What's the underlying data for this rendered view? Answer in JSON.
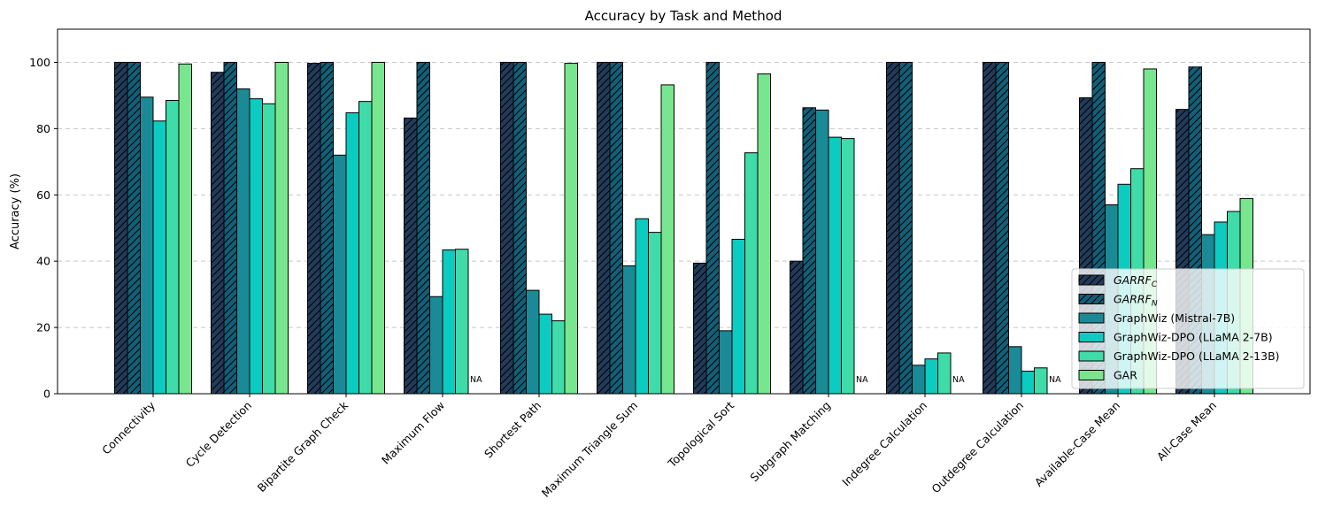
{
  "chart_data": {
    "type": "bar",
    "title": "Accuracy by Task and Method",
    "xlabel": "",
    "ylabel": "Accuracy (%)",
    "ylim": [
      0,
      110
    ],
    "yticks": [
      0,
      20,
      40,
      60,
      80,
      100
    ],
    "grid": "y-dashed",
    "legend_position": "lower-right",
    "na_label": "NA",
    "categories": [
      "Connectivity",
      "Cycle Detection",
      "Bipartite Graph Check",
      "Maximum Flow",
      "Shortest Path",
      "Maximum Triangle Sum",
      "Topological Sort",
      "Subgraph Matching",
      "Indegree Calculation",
      "Outdegree Calculation",
      "Available-Case Mean",
      "All-Case Mean"
    ],
    "series": [
      {
        "name": "GARRF",
        "sub": "C",
        "color": "#233b5a",
        "hatch": true,
        "values": [
          100,
          97,
          99.7,
          83.2,
          100,
          100,
          39.4,
          40,
          100,
          100,
          89.3,
          85.8
        ]
      },
      {
        "name": "GARRF",
        "sub": "N",
        "color": "#125f78",
        "hatch": true,
        "values": [
          100,
          100,
          100,
          100,
          100,
          100,
          100,
          86.3,
          100,
          100,
          100,
          98.6
        ]
      },
      {
        "name": "GraphWiz (Mistral-7B)",
        "sub": "",
        "color": "#1a8a96",
        "hatch": false,
        "values": [
          89.5,
          92,
          72,
          29.3,
          31.2,
          38.6,
          19,
          85.6,
          8.6,
          14.2,
          57,
          48
        ]
      },
      {
        "name": "GraphWiz-DPO (LLaMA 2-7B)",
        "sub": "",
        "color": "#0ccbc0",
        "hatch": false,
        "values": [
          82.3,
          89,
          84.8,
          43.4,
          24,
          52.8,
          46.6,
          77.4,
          10.5,
          6.8,
          63.2,
          51.8
        ]
      },
      {
        "name": "GraphWiz-DPO (LLaMA 2-13B)",
        "sub": "",
        "color": "#3fdba8",
        "hatch": false,
        "values": [
          88.5,
          87.5,
          88.2,
          43.6,
          22,
          48.7,
          72.7,
          77,
          12.3,
          7.8,
          67.9,
          55
        ]
      },
      {
        "name": "GAR",
        "sub": "",
        "color": "#77e68f",
        "hatch": false,
        "values": [
          99.5,
          100,
          100,
          null,
          99.7,
          93.2,
          96.5,
          null,
          null,
          null,
          98,
          58.9
        ]
      }
    ]
  }
}
